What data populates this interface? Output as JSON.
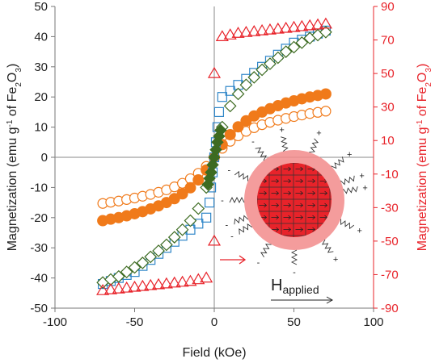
{
  "chart_data": {
    "type": "scatter",
    "xlabel": "Field (kOe)",
    "ylabel_left": {
      "main": "Magnetization (emu g",
      "sup": "-1",
      "of": " of Fe",
      "sub1": "2",
      "o": "O",
      "sub2": "3",
      "close": ")"
    },
    "ylabel_right": {
      "main": "Magnetization (emu g",
      "sup": "-1",
      "of": " of Fe",
      "sub1": "2",
      "o": "O",
      "sub2": "3",
      "close": ")"
    },
    "xlim": [
      -100,
      100
    ],
    "ylim_left": [
      -50,
      50
    ],
    "ylim_right": [
      -90,
      90
    ],
    "x_ticks": [
      -100,
      -50,
      0,
      50,
      100
    ],
    "x_tick_labels": [
      "-100",
      "-50",
      "0",
      "50",
      "100"
    ],
    "y_ticks_left": [
      -50,
      -40,
      -30,
      -20,
      -10,
      0,
      10,
      20,
      30,
      40,
      50
    ],
    "y_tick_labels_left": [
      "-50",
      "-40",
      "-30",
      "-20",
      "-10",
      "0",
      "10",
      "20",
      "30",
      "40",
      "50"
    ],
    "y_ticks_right": [
      -90,
      -70,
      -50,
      -30,
      -10,
      10,
      30,
      50,
      70,
      90
    ],
    "y_tick_labels_right": [
      "-90",
      "-70",
      "-50",
      "-30",
      "-10",
      "10",
      "30",
      "50",
      "70",
      "90"
    ],
    "grid": false,
    "legend": "none",
    "series": [
      {
        "marker": "circle-open",
        "color": "#f07a1a",
        "axis": "left",
        "x": [
          -70,
          -65,
          -60,
          -55,
          -50,
          -45,
          -40,
          -35,
          -30,
          -25,
          -20,
          -15,
          -10,
          -5,
          0,
          5,
          10,
          15,
          20,
          25,
          30,
          35,
          40,
          45,
          50,
          55,
          60,
          65,
          70
        ],
        "y": [
          -15.3,
          -14.9,
          -14.5,
          -14.0,
          -13.5,
          -12.9,
          -12.3,
          -11.6,
          -10.8,
          -9.8,
          -8.6,
          -7.1,
          -5.3,
          -3.0,
          0.0,
          3.0,
          5.3,
          7.1,
          8.6,
          9.8,
          10.8,
          11.6,
          12.3,
          12.9,
          13.5,
          14.0,
          14.5,
          14.9,
          15.3
        ]
      },
      {
        "marker": "circle-filled",
        "color": "#f07a1a",
        "axis": "left",
        "x": [
          -70,
          -65,
          -60,
          -55,
          -50,
          -45,
          -40,
          -35,
          -30,
          -25,
          -20,
          -15,
          -10,
          -5,
          0,
          5,
          10,
          15,
          20,
          25,
          30,
          35,
          40,
          45,
          50,
          55,
          60,
          65,
          70
        ],
        "y": [
          -21.0,
          -20.5,
          -20.0,
          -19.4,
          -18.7,
          -18.0,
          -17.1,
          -16.1,
          -15.0,
          -13.7,
          -12.1,
          -10.1,
          -7.5,
          -4.2,
          0.0,
          4.2,
          7.5,
          10.1,
          12.1,
          13.7,
          15.0,
          16.1,
          17.1,
          18.0,
          18.7,
          19.4,
          20.0,
          20.5,
          21.0
        ]
      },
      {
        "marker": "square-open",
        "color": "#2f86c8",
        "axis": "left",
        "x": [
          -70,
          -65,
          -60,
          -55,
          -50,
          -45,
          -40,
          -35,
          -30,
          -25,
          -20,
          -15,
          -10,
          -5,
          -3,
          -2,
          -1,
          0,
          1,
          2,
          3,
          5,
          10,
          15,
          20,
          25,
          30,
          35,
          40,
          45,
          50,
          55,
          60,
          65,
          70
        ],
        "y": [
          -42,
          -41,
          -40,
          -39,
          -38,
          -36,
          -34,
          -32,
          -30,
          -28,
          -26,
          -24,
          -22,
          -20,
          -15,
          -10,
          -5,
          0,
          5,
          10,
          15,
          20,
          22,
          24,
          26,
          28,
          30,
          32,
          34,
          36,
          38,
          39,
          40,
          41,
          42
        ]
      },
      {
        "marker": "diamond-open",
        "color": "#3d6b21",
        "axis": "left",
        "x": [
          -70,
          -65,
          -60,
          -55,
          -50,
          -45,
          -40,
          -35,
          -30,
          -25,
          -20,
          -15,
          -10,
          -5,
          5,
          10,
          15,
          20,
          25,
          30,
          35,
          40,
          45,
          50,
          55,
          60,
          65,
          70
        ],
        "y": [
          -41.5,
          -40.5,
          -39.5,
          -38,
          -36.5,
          -35,
          -33,
          -31,
          -29,
          -26.5,
          -24,
          -21,
          -17,
          -10,
          10,
          17,
          21,
          24,
          26.5,
          29,
          31,
          33,
          35,
          36.5,
          38,
          39.5,
          40.5,
          41.5
        ]
      },
      {
        "marker": "diamond-filled",
        "color": "#3d6b21",
        "axis": "left",
        "x": [
          -4,
          -3,
          -2,
          -1,
          0,
          1,
          2,
          3,
          4
        ],
        "y": [
          -9,
          -7,
          -5,
          -2.5,
          0,
          2.5,
          5,
          7,
          9
        ]
      },
      {
        "marker": "triangle-open",
        "color": "#e8232a",
        "axis": "right",
        "x": [
          -70,
          -65,
          -60,
          -55,
          -50,
          -45,
          -40,
          -35,
          -30,
          -25,
          -20,
          -15,
          -10,
          -5,
          0,
          0,
          5,
          10,
          15,
          20,
          25,
          30,
          35,
          40,
          45,
          50,
          55,
          60,
          65,
          70
        ],
        "y": [
          -79.5,
          -79,
          -78.5,
          -78,
          -77.5,
          -77,
          -76.5,
          -76,
          -75.5,
          -75,
          -74.5,
          -74,
          -73,
          -72,
          -50,
          50,
          72,
          73,
          74,
          74.5,
          75,
          75.5,
          76,
          76.5,
          77,
          77.5,
          78,
          78.5,
          79,
          79.5
        ]
      }
    ],
    "inset": {
      "label_main": "H",
      "label_sub": "applied",
      "signs": [
        "+",
        "+",
        "+",
        "+",
        "+",
        "+",
        "-",
        "-",
        "-",
        "-",
        "-",
        "-",
        "+",
        "-"
      ]
    }
  }
}
